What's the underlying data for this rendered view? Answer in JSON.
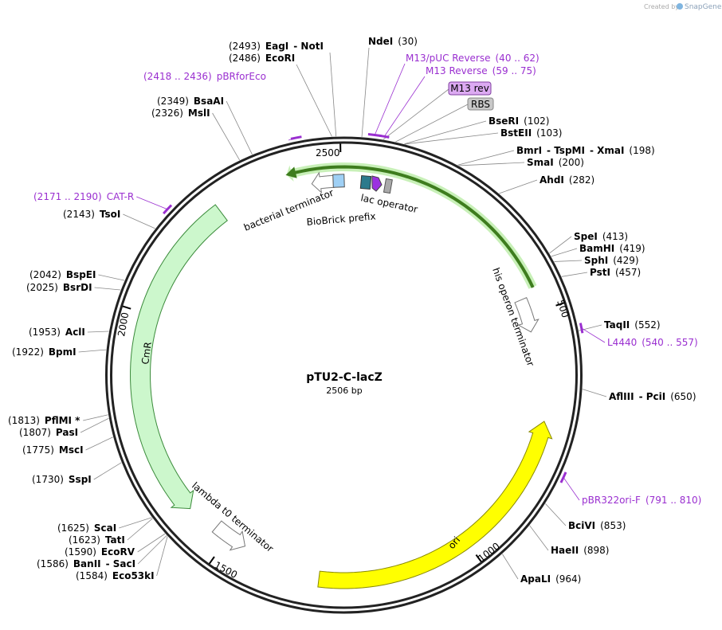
{
  "credit": {
    "prefix": "Created by",
    "brand": "SnapGene"
  },
  "map": {
    "name": "pTU2-C-lacZ",
    "length": "2506 bp"
  },
  "sites": [
    {
      "names": [
        "EagI",
        "- NotI"
      ],
      "pos": "(2493)"
    },
    {
      "names": [
        "EcoRI"
      ],
      "pos": "(2486)"
    },
    {
      "names": [
        "NdeI"
      ],
      "pos": "(30)"
    },
    {
      "names": [
        "BseRI"
      ],
      "pos": "(102)"
    },
    {
      "names": [
        "BstEII"
      ],
      "pos": "(103)"
    },
    {
      "names": [
        "BmrI",
        "- TspMI",
        "- XmaI"
      ],
      "pos": "(198)"
    },
    {
      "names": [
        "SmaI"
      ],
      "pos": "(200)"
    },
    {
      "names": [
        "AhdI"
      ],
      "pos": "(282)"
    },
    {
      "names": [
        "SpeI"
      ],
      "pos": "(413)"
    },
    {
      "names": [
        "BamHI"
      ],
      "pos": "(419)"
    },
    {
      "names": [
        "SphI"
      ],
      "pos": "(429)"
    },
    {
      "names": [
        "PstI"
      ],
      "pos": "(457)"
    },
    {
      "names": [
        "TaqII"
      ],
      "pos": "(552)"
    },
    {
      "names": [
        "AflIII",
        "- PciI"
      ],
      "pos": "(650)"
    },
    {
      "names": [
        "BciVI"
      ],
      "pos": "(853)"
    },
    {
      "names": [
        "HaeII"
      ],
      "pos": "(898)"
    },
    {
      "names": [
        "ApaLI"
      ],
      "pos": "(964)"
    },
    {
      "names": [
        "BsaAI"
      ],
      "pos": "(2349)"
    },
    {
      "names": [
        "MslI"
      ],
      "pos": "(2326)"
    },
    {
      "names": [
        "TsoI"
      ],
      "pos": "(2143)"
    },
    {
      "names": [
        "BspEI"
      ],
      "pos": "(2042)"
    },
    {
      "names": [
        "BsrDI"
      ],
      "pos": "(2025)"
    },
    {
      "names": [
        "AclI"
      ],
      "pos": "(1953)"
    },
    {
      "names": [
        "BpmI"
      ],
      "pos": "(1922)"
    },
    {
      "names": [
        "PflMI *"
      ],
      "pos": "(1813)"
    },
    {
      "names": [
        "PasI"
      ],
      "pos": "(1807)"
    },
    {
      "names": [
        "MscI"
      ],
      "pos": "(1775)"
    },
    {
      "names": [
        "SspI"
      ],
      "pos": "(1730)"
    },
    {
      "names": [
        "ScaI"
      ],
      "pos": "(1625)"
    },
    {
      "names": [
        "TatI"
      ],
      "pos": "(1623)"
    },
    {
      "names": [
        "EcoRV"
      ],
      "pos": "(1590)"
    },
    {
      "names": [
        "BanII",
        "- SacI"
      ],
      "pos": "(1586)"
    },
    {
      "names": [
        "Eco53kI"
      ],
      "pos": "(1584)"
    }
  ],
  "primers": [
    {
      "name": "pBRforEco",
      "range": "(2418 .. 2436)"
    },
    {
      "name": "CAT-R",
      "range": "(2171 .. 2190)"
    },
    {
      "name": "M13/pUC Reverse",
      "range": "(40 .. 62)"
    },
    {
      "name": "M13 Reverse",
      "range": "(59 .. 75)"
    },
    {
      "name": "L4440",
      "range": "(540 .. 557)"
    },
    {
      "name": "pBR322ori-F",
      "range": "(791 .. 810)"
    }
  ],
  "features": [
    "M13 rev",
    "RBS",
    "lac operator",
    "bacterial terminator",
    "BioBrick prefix",
    "his operon terminator",
    "CmR",
    "lambda t0 terminator",
    "ori"
  ],
  "ticks": [
    "500",
    "1000",
    "1500",
    "2000",
    "2500"
  ]
}
